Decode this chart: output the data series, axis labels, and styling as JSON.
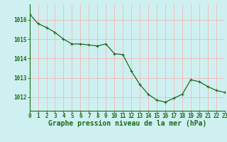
{
  "x": [
    0,
    1,
    2,
    3,
    4,
    5,
    6,
    7,
    8,
    9,
    10,
    11,
    12,
    13,
    14,
    15,
    16,
    17,
    18,
    19,
    20,
    21,
    22,
    23
  ],
  "y": [
    1016.3,
    1015.8,
    1015.6,
    1015.35,
    1015.0,
    1014.75,
    1014.75,
    1014.7,
    1014.65,
    1014.75,
    1014.25,
    1014.2,
    1013.35,
    1012.65,
    1012.15,
    1011.85,
    1011.75,
    1011.95,
    1012.15,
    1012.9,
    1012.8,
    1012.55,
    1012.35,
    1012.25
  ],
  "line_color": "#1a6b1a",
  "marker": "+",
  "marker_size": 3,
  "bg_color": "#cff0f0",
  "grid_color": "#ffaaaa",
  "xlabel": "Graphe pression niveau de la mer (hPa)",
  "xlabel_color": "#1a6b1a",
  "ytick_labels": [
    "1012",
    "1013",
    "1014",
    "1015",
    "1016"
  ],
  "ytick_values": [
    1012,
    1013,
    1014,
    1015,
    1016
  ],
  "ylim": [
    1011.3,
    1016.8
  ],
  "xlim": [
    0,
    23
  ],
  "tick_label_color": "#1a6b1a",
  "tick_fontsize": 5.5,
  "xlabel_fontsize": 7,
  "line_width": 0.9
}
